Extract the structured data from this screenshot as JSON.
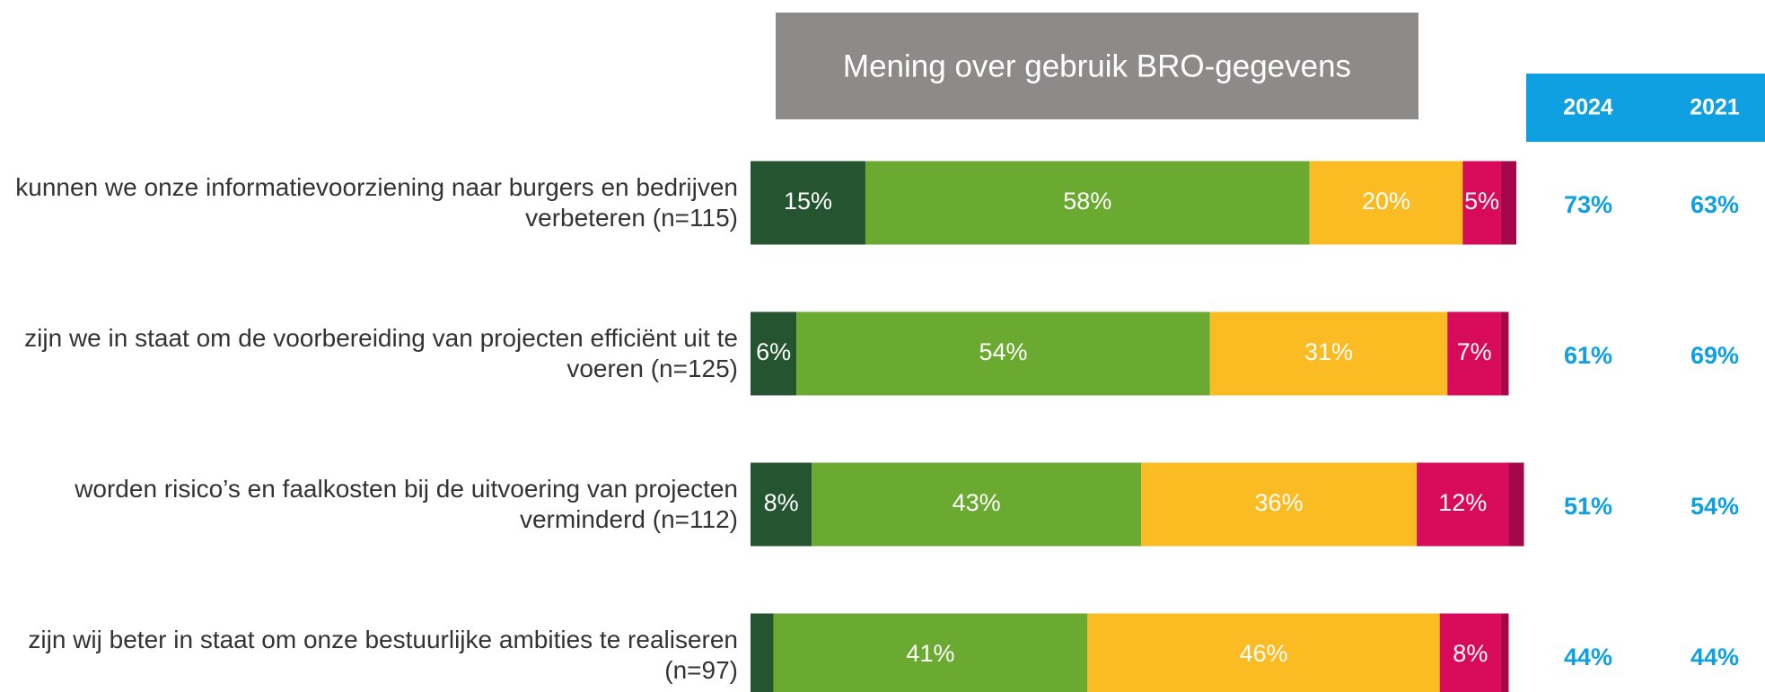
{
  "chart_data": {
    "type": "stacked-bar-horizontal",
    "title": "Mening over gebruik BRO-gegevens",
    "categories": [
      "kunnen we onze informatievoorziening naar burgers en bedrijven verbeteren (n=115)",
      "zijn we in staat om de voorbereiding van projecten efficiënt uit te voeren (n=125)",
      "worden risico’s en faalkosten bij de uitvoering van projecten verminderd (n=112)",
      "zijn wij beter in staat om onze bestuurlijke ambities te realiseren (n=97)"
    ],
    "xlim": [
      0,
      100
    ],
    "series": [
      {
        "color": "#245530",
        "values": [
          15,
          6,
          8,
          3
        ],
        "value_labels": [
          "15%",
          "6%",
          "8%",
          null
        ]
      },
      {
        "color": "#6aaa30",
        "values": [
          58,
          54,
          43,
          41
        ],
        "value_labels": [
          "58%",
          "54%",
          "43%",
          "41%"
        ]
      },
      {
        "color": "#fbbb22",
        "values": [
          20,
          31,
          36,
          46
        ],
        "value_labels": [
          "20%",
          "31%",
          "36%",
          "46%"
        ]
      },
      {
        "color": "#d80b5a",
        "values": [
          5,
          7,
          12,
          8
        ],
        "value_labels": [
          "5%",
          "7%",
          "12%",
          "8%"
        ]
      },
      {
        "color": "#a5084a",
        "values": [
          2,
          1,
          2,
          1
        ],
        "value_labels": [
          null,
          null,
          null,
          null
        ]
      }
    ],
    "columns": [
      {
        "name": "2024",
        "values": [
          73,
          61,
          51,
          44
        ],
        "value_labels": [
          "73%",
          "61%",
          "51%",
          "44%"
        ]
      },
      {
        "name": "2021",
        "values": [
          63,
          69,
          54,
          44
        ],
        "value_labels": [
          "63%",
          "69%",
          "54%",
          "44%"
        ]
      }
    ]
  }
}
